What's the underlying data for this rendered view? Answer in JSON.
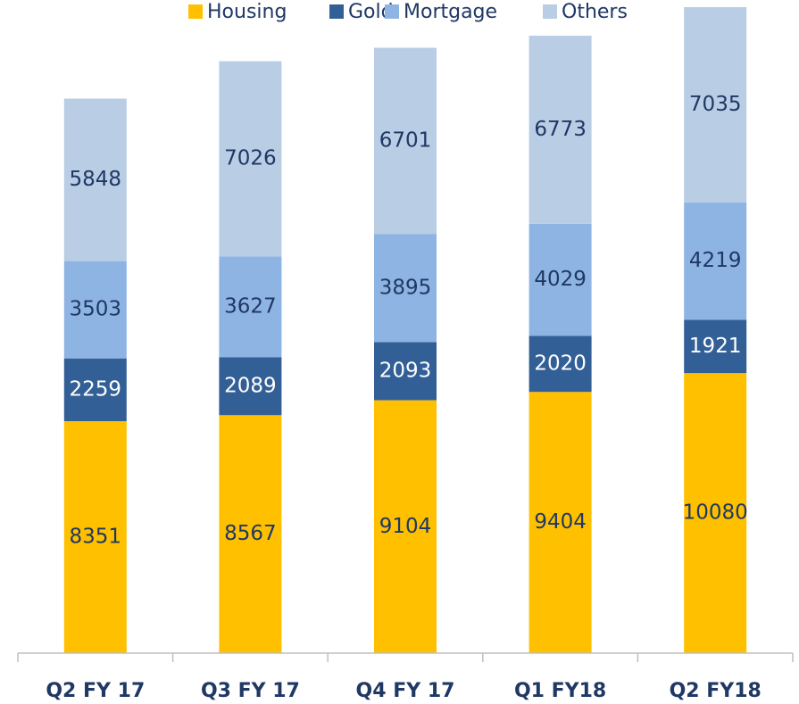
{
  "chart_data": {
    "type": "stacked_bar",
    "categories": [
      "Q2 FY 17",
      "Q3 FY 17",
      "Q4 FY 17",
      "Q1 FY18",
      "Q2 FY18"
    ],
    "series": [
      {
        "name": "Housing",
        "color": "#ffc000",
        "label_color": "#1f3864",
        "values": [
          8351,
          8567,
          9104,
          9404,
          10080
        ]
      },
      {
        "name": "Gold",
        "color": "#335f97",
        "label_color": "#ffffff",
        "values": [
          2259,
          2089,
          2093,
          2020,
          1921
        ]
      },
      {
        "name": "Mortgage",
        "color": "#8eb4e3",
        "label_color": "#1f3864",
        "values": [
          3503,
          3627,
          3895,
          4029,
          4219
        ]
      },
      {
        "name": "Others",
        "color": "#b9cde5",
        "label_color": "#1f3864",
        "values": [
          5848,
          7026,
          6701,
          6773,
          7035
        ]
      }
    ],
    "legend": "top"
  }
}
